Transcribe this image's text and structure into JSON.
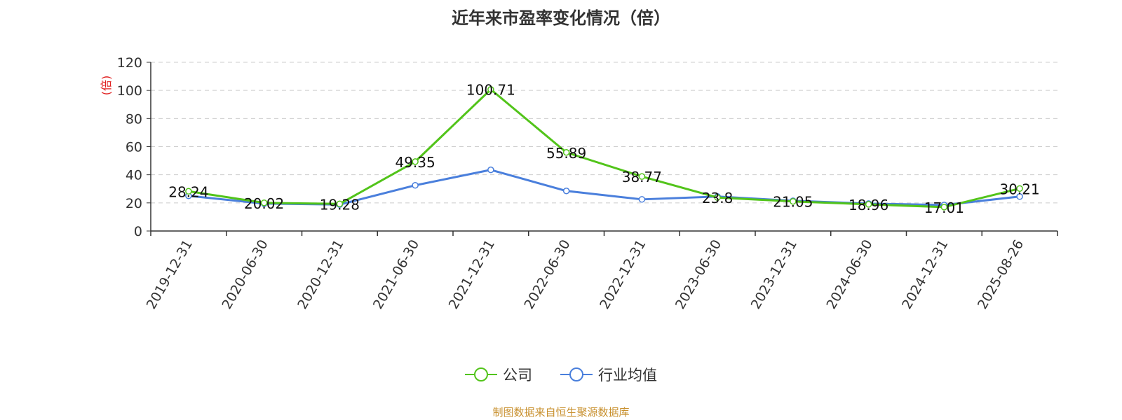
{
  "colors": {
    "company": "#52c41a",
    "industry": "#4a7fdc",
    "ylabel": "#e02020",
    "source": "#c8902e",
    "grid": "#cccccc",
    "axis": "#333333"
  },
  "legend": {
    "company_label": "公司",
    "industry_label": "行业均值"
  },
  "source_note": "制图数据来自恒生聚源数据库",
  "chart_data": {
    "type": "line",
    "title": "近年来市盈率变化情况（倍）",
    "xlabel": "",
    "ylabel": "(倍)",
    "ylim": [
      0,
      120
    ],
    "yticks": [
      0,
      20,
      40,
      60,
      80,
      100,
      120
    ],
    "grid": true,
    "legend_position": "bottom",
    "categories": [
      "2019-12-31",
      "2020-06-30",
      "2020-12-31",
      "2021-06-30",
      "2021-12-31",
      "2022-06-30",
      "2022-12-31",
      "2023-06-30",
      "2023-12-31",
      "2024-06-30",
      "2024-12-31",
      "2025-08-26"
    ],
    "series": [
      {
        "name": "公司",
        "values": [
          28.24,
          20.02,
          19.28,
          49.35,
          100.71,
          55.89,
          38.77,
          23.8,
          21.05,
          18.96,
          17.01,
          30.21
        ],
        "labels": [
          "28.24",
          "20.02",
          "19.28",
          "49.35",
          "100.71",
          "55.89",
          "38.77",
          "23.8",
          "21.05",
          "18.96",
          "17.01",
          "30.21"
        ]
      },
      {
        "name": "行业均值",
        "values": [
          25,
          19.5,
          18.8,
          32.5,
          43.5,
          28.5,
          22.5,
          24.5,
          21.5,
          19.5,
          18.5,
          24.5
        ]
      }
    ]
  }
}
